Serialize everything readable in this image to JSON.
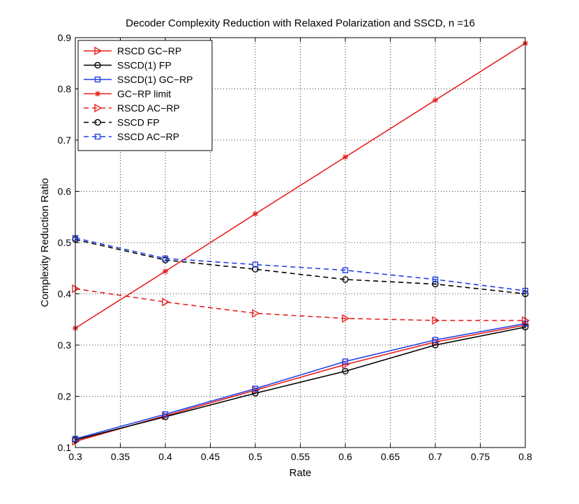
{
  "chart_data": {
    "type": "line",
    "title": "Decoder Complexity Reduction with Relaxed Polarization and SSCD, n =16",
    "xlabel": "Rate",
    "ylabel": "Complexity Reduction Ratio",
    "xlim": [
      0.3,
      0.8
    ],
    "ylim": [
      0.1,
      0.9
    ],
    "grid": true,
    "legend_position": "top-left",
    "xticks": [
      0.3,
      0.35,
      0.4,
      0.45,
      0.5,
      0.55,
      0.6,
      0.65,
      0.7,
      0.75,
      0.8
    ],
    "xtick_labels": [
      "0.3",
      "0.35",
      "0.4",
      "0.45",
      "0.5",
      "0.55",
      "0.6",
      "0.65",
      "0.7",
      "0.75",
      "0.8"
    ],
    "yticks": [
      0.1,
      0.2,
      0.3,
      0.4,
      0.5,
      0.6,
      0.7,
      0.8,
      0.9
    ],
    "ytick_labels": [
      "0.1",
      "0.2",
      "0.3",
      "0.4",
      "0.5",
      "0.6",
      "0.7",
      "0.8",
      "0.9"
    ],
    "x": [
      0.3,
      0.4,
      0.5,
      0.6,
      0.7,
      0.8
    ],
    "series": [
      {
        "name": "RSCD GC−RP",
        "color": "#e8201f",
        "dash": "solid",
        "marker": "triangle-right",
        "values": [
          0.112,
          0.162,
          0.212,
          0.262,
          0.306,
          0.339
        ]
      },
      {
        "name": "SSCD(1) FP",
        "color": "#000000",
        "dash": "solid",
        "marker": "circle",
        "values": [
          0.115,
          0.16,
          0.206,
          0.249,
          0.3,
          0.335
        ]
      },
      {
        "name": "SSCD(1) GC−RP",
        "color": "#2340e8",
        "dash": "solid",
        "marker": "square",
        "values": [
          0.117,
          0.165,
          0.215,
          0.268,
          0.31,
          0.342
        ]
      },
      {
        "name": "GC−RP limit",
        "color": "#e8201f",
        "dash": "solid",
        "marker": "star",
        "values": [
          0.333,
          0.444,
          0.556,
          0.667,
          0.778,
          0.889
        ]
      },
      {
        "name": "RSCD AC−RP",
        "color": "#e8201f",
        "dash": "dashed",
        "marker": "triangle-right",
        "values": [
          0.41,
          0.384,
          0.362,
          0.352,
          0.348,
          0.348
        ]
      },
      {
        "name": "SSCD FP",
        "color": "#000000",
        "dash": "dashed",
        "marker": "circle",
        "values": [
          0.506,
          0.466,
          0.448,
          0.428,
          0.419,
          0.4
        ]
      },
      {
        "name": "SSCD AC−RP",
        "color": "#2340e8",
        "dash": "dashed",
        "marker": "square",
        "values": [
          0.509,
          0.469,
          0.457,
          0.446,
          0.428,
          0.406
        ]
      }
    ]
  }
}
